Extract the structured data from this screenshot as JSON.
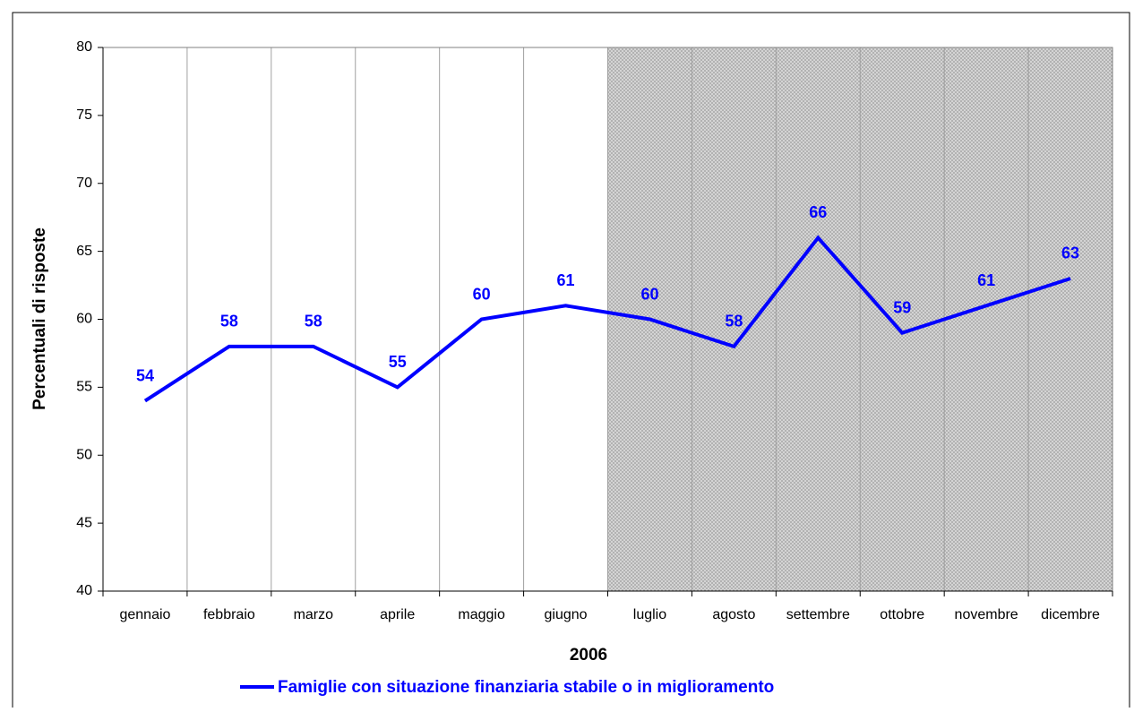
{
  "chart_data": {
    "type": "line",
    "x_label": "2006",
    "y_label": "Percentuali di risposte",
    "categories": [
      "gennaio",
      "febbraio",
      "marzo",
      "aprile",
      "maggio",
      "giugno",
      "luglio",
      "agosto",
      "settembre",
      "ottobre",
      "novembre",
      "dicembre"
    ],
    "series": [
      {
        "name": "Famiglie con situazione finanziaria  stabile o in miglioramento",
        "color": "#0000ff",
        "values": [
          54,
          58,
          58,
          55,
          60,
          61,
          60,
          58,
          66,
          59,
          61,
          63
        ]
      }
    ],
    "ylim": [
      40,
      80
    ],
    "yticks": [
      40,
      45,
      50,
      55,
      60,
      65,
      70,
      75,
      80
    ],
    "grid": true,
    "legend": "bottom"
  }
}
